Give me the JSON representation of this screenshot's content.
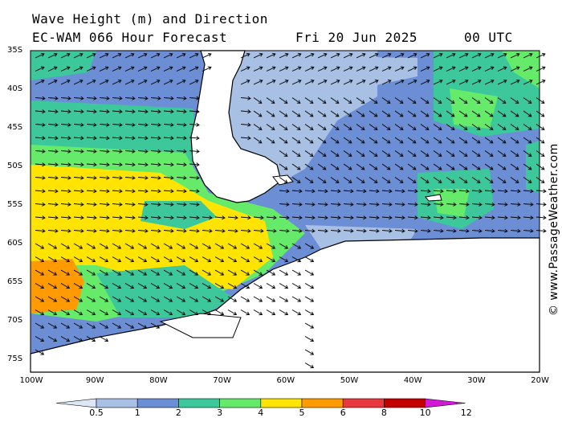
{
  "header": {
    "title": "Wave Height (m) and Direction",
    "model": "EC-WAM 066 Hour Forecast",
    "date": "Fri 20 Jun 2025",
    "time": "00 UTC"
  },
  "copyright": "© www.PassageWeather.com",
  "map": {
    "region": "South America southern tip / Drake Passage / Antarctic Peninsula",
    "lat_labels": [
      "35S",
      "40S",
      "45S",
      "50S",
      "55S",
      "60S",
      "65S",
      "70S",
      "75S"
    ],
    "lon_labels": [
      "100W",
      "90W",
      "80W",
      "70W",
      "60W",
      "50W",
      "40W",
      "30W",
      "20W"
    ],
    "colors": {
      "ocean_lt": "#a9c0e5",
      "ocean_mid": "#6b8ed5",
      "teal": "#3cc89b",
      "green": "#66ea6a",
      "yellow": "#ffe400",
      "orange": "#ff9a00",
      "land": "#ffffff",
      "arrow": "#000000"
    }
  },
  "legend": {
    "labels": [
      "0.5",
      "1",
      "2",
      "3",
      "4",
      "5",
      "6",
      "8",
      "10",
      "12"
    ],
    "colors": [
      "#dde5f7",
      "#a9c0e5",
      "#6b8ed5",
      "#3cc89b",
      "#66ea6a",
      "#ffe400",
      "#ff9a00",
      "#e8383d",
      "#c20000",
      "#d21ad6"
    ]
  }
}
